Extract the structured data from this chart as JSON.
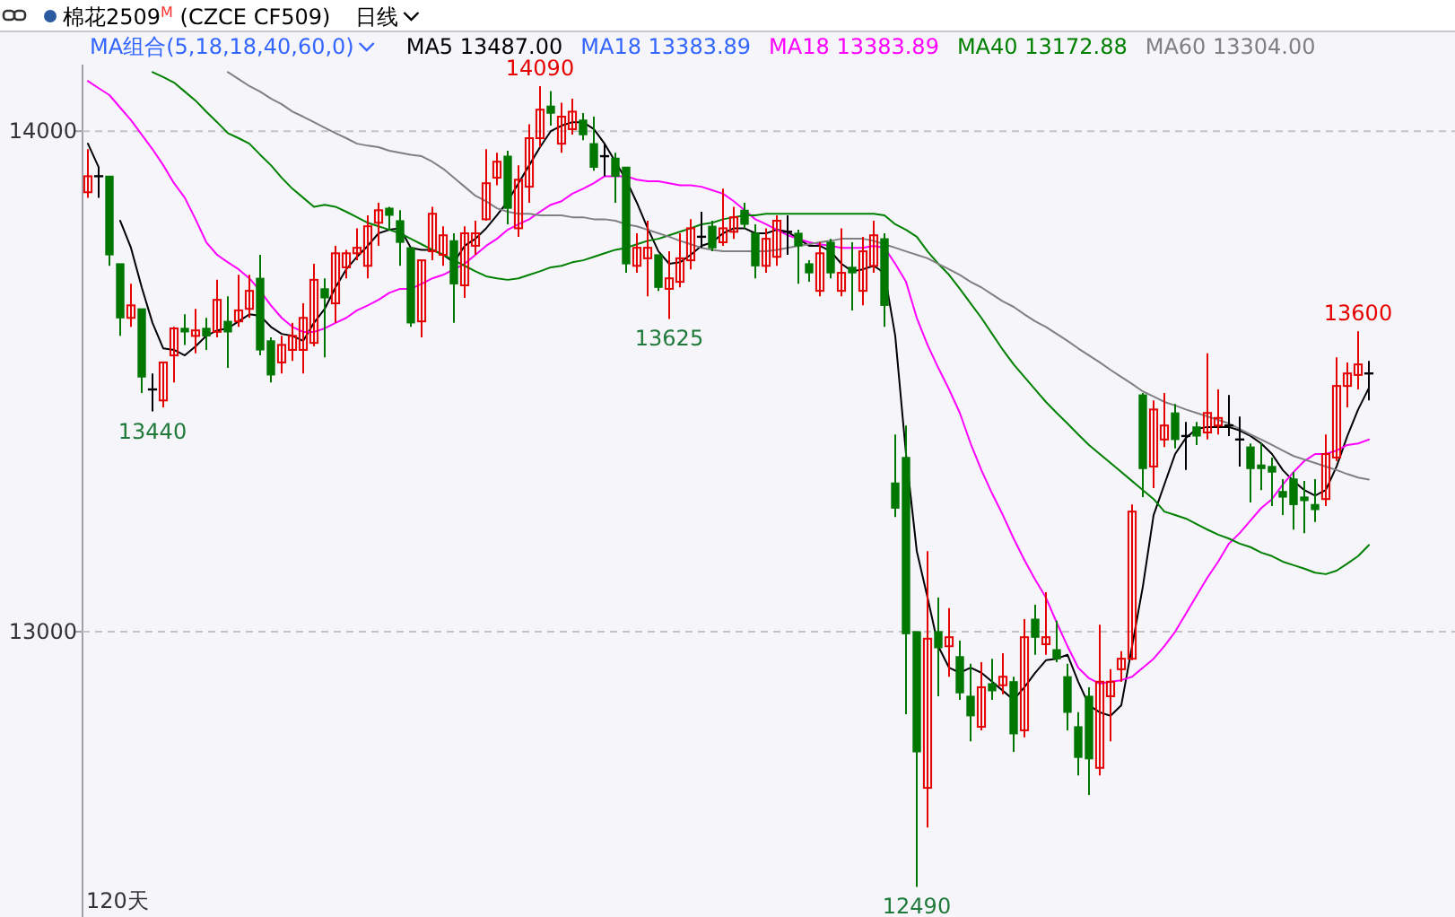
{
  "chart_data": {
    "type": "candlestick",
    "title": "棉花2509$^{M}$ (CZCE CF509)",
    "subtitle": "日线",
    "legend_title": "MA组合(5,18,18,40,60,0)",
    "legend": "top",
    "grid": "y",
    "tick_labels": "y",
    "line_style": "solid",
    "ylim": [
      12430,
      14133
    ],
    "yticks": [
      13000,
      14000
    ],
    "categories": [
      null,
      null,
      null,
      null,
      null,
      null,
      null,
      null,
      null,
      null,
      null,
      null,
      null,
      null,
      null,
      null,
      null,
      null,
      null,
      null,
      null,
      null,
      null,
      null,
      null,
      null,
      null,
      null,
      null,
      null,
      null,
      null,
      null,
      null,
      null,
      null,
      null,
      null,
      null,
      null,
      null,
      null,
      null,
      null,
      null,
      null,
      null,
      null,
      null,
      null,
      null,
      null,
      null,
      null,
      null,
      null,
      null,
      null,
      null,
      null,
      null,
      null,
      null,
      null,
      null,
      null,
      null,
      null,
      null,
      null,
      null,
      null,
      null,
      null,
      null,
      null,
      null,
      null,
      null,
      null,
      null,
      null,
      null,
      null,
      null,
      null,
      null,
      null,
      null,
      null,
      null,
      null,
      null,
      null,
      null,
      null,
      null,
      null,
      null,
      null,
      null,
      null,
      null,
      null,
      null,
      null,
      null,
      null,
      null,
      null,
      null,
      null,
      null,
      null,
      null,
      null,
      null,
      null,
      null,
      null
    ],
    "ohlc": [
      [
        13878,
        13964,
        13867,
        13910
      ],
      [
        13910,
        13928,
        13867,
        13910
      ],
      [
        13910,
        13910,
        13731,
        13753
      ],
      [
        13735,
        13735,
        13591,
        13627
      ],
      [
        13627,
        13695,
        13609,
        13652
      ],
      [
        13645,
        13645,
        13477,
        13509
      ],
      [
        13484,
        13516,
        13440,
        13484
      ],
      [
        13462,
        13538,
        13448,
        13538
      ],
      [
        13552,
        13609,
        13498,
        13606
      ],
      [
        13606,
        13634,
        13573,
        13599
      ],
      [
        13591,
        13645,
        13556,
        13602
      ],
      [
        13606,
        13627,
        13563,
        13591
      ],
      [
        13599,
        13703,
        13588,
        13663
      ],
      [
        13620,
        13670,
        13527,
        13599
      ],
      [
        13620,
        13713,
        13609,
        13642
      ],
      [
        13645,
        13713,
        13627,
        13681
      ],
      [
        13706,
        13753,
        13552,
        13563
      ],
      [
        13581,
        13588,
        13498,
        13513
      ],
      [
        13538,
        13591,
        13516,
        13573
      ],
      [
        13563,
        13617,
        13541,
        13591
      ],
      [
        13563,
        13656,
        13516,
        13627
      ],
      [
        13577,
        13735,
        13570,
        13703
      ],
      [
        13685,
        13706,
        13548,
        13667
      ],
      [
        13656,
        13771,
        13617,
        13756
      ],
      [
        13728,
        13763,
        13706,
        13756
      ],
      [
        13756,
        13806,
        13742,
        13767
      ],
      [
        13731,
        13832,
        13706,
        13810
      ],
      [
        13817,
        13857,
        13771,
        13842
      ],
      [
        13846,
        13849,
        13803,
        13832
      ],
      [
        13821,
        13842,
        13731,
        13778
      ],
      [
        13767,
        13767,
        13609,
        13617
      ],
      [
        13620,
        13742,
        13588,
        13742
      ],
      [
        13760,
        13849,
        13742,
        13835
      ],
      [
        13753,
        13810,
        13731,
        13792
      ],
      [
        13781,
        13796,
        13617,
        13695
      ],
      [
        13692,
        13810,
        13667,
        13796
      ],
      [
        13771,
        13821,
        13753,
        13796
      ],
      [
        13824,
        13964,
        13821,
        13896
      ],
      [
        13907,
        13957,
        13892,
        13939
      ],
      [
        13950,
        13961,
        13814,
        13846
      ],
      [
        13806,
        13932,
        13789,
        13903
      ],
      [
        13889,
        14014,
        13857,
        13986
      ],
      [
        13986,
        14090,
        13968,
        14043
      ],
      [
        14050,
        14080,
        14011,
        14036
      ],
      [
        13975,
        14057,
        13957,
        14029
      ],
      [
        14004,
        14065,
        13993,
        14039
      ],
      [
        14022,
        14036,
        13982,
        13993
      ],
      [
        13975,
        14029,
        13921,
        13928
      ],
      [
        13950,
        13975,
        13910,
        13950
      ],
      [
        13946,
        13957,
        13857,
        13910
      ],
      [
        13928,
        13928,
        13717,
        13735
      ],
      [
        13731,
        13796,
        13717,
        13767
      ],
      [
        13746,
        13821,
        13670,
        13767
      ],
      [
        13753,
        13753,
        13681,
        13688
      ],
      [
        13685,
        13760,
        13625,
        13706
      ],
      [
        13699,
        13796,
        13688,
        13746
      ],
      [
        13742,
        13824,
        13724,
        13806
      ],
      [
        13789,
        13839,
        13767,
        13789
      ],
      [
        13810,
        13821,
        13760,
        13767
      ],
      [
        13778,
        13885,
        13771,
        13806
      ],
      [
        13799,
        13849,
        13785,
        13828
      ],
      [
        13842,
        13857,
        13806,
        13814
      ],
      [
        13796,
        13814,
        13706,
        13731
      ],
      [
        13731,
        13806,
        13717,
        13785
      ],
      [
        13749,
        13832,
        13731,
        13821
      ],
      [
        13799,
        13832,
        13753,
        13799
      ],
      [
        13796,
        13803,
        13695,
        13771
      ],
      [
        13735,
        13742,
        13699,
        13717
      ],
      [
        13681,
        13778,
        13670,
        13756
      ],
      [
        13778,
        13785,
        13706,
        13717
      ],
      [
        13681,
        13806,
        13670,
        13717
      ],
      [
        13728,
        13778,
        13642,
        13717
      ],
      [
        13681,
        13789,
        13652,
        13760
      ],
      [
        13731,
        13821,
        13717,
        13792
      ],
      [
        13785,
        13796,
        13609,
        13652
      ],
      [
        13297,
        13394,
        13229,
        13247
      ],
      [
        13348,
        13412,
        12835,
        12996
      ],
      [
        13000,
        13000,
        12490,
        12760
      ],
      [
        12688,
        13161,
        12609,
        12986
      ],
      [
        13000,
        13068,
        12871,
        12968
      ],
      [
        12971,
        13047,
        12910,
        12989
      ],
      [
        12950,
        12982,
        12864,
        12878
      ],
      [
        12871,
        12936,
        12781,
        12832
      ],
      [
        12810,
        12939,
        12803,
        12889
      ],
      [
        12896,
        12946,
        12864,
        12882
      ],
      [
        12893,
        12957,
        12875,
        12910
      ],
      [
        12900,
        12910,
        12760,
        12796
      ],
      [
        12803,
        13025,
        12789,
        12989
      ],
      [
        13025,
        13054,
        12954,
        12989
      ],
      [
        12975,
        13079,
        12954,
        12989
      ],
      [
        12964,
        13022,
        12939,
        12946
      ],
      [
        12910,
        12936,
        12803,
        12839
      ],
      [
        12810,
        12839,
        12713,
        12749
      ],
      [
        12871,
        12889,
        12674,
        12746
      ],
      [
        12728,
        13014,
        12713,
        12900
      ],
      [
        12871,
        12925,
        12781,
        12900
      ],
      [
        12925,
        12961,
        12900,
        12946
      ],
      [
        12946,
        13254,
        12943,
        13240
      ],
      [
        13473,
        13477,
        13269,
        13326
      ],
      [
        13330,
        13462,
        13287,
        13444
      ],
      [
        13384,
        13477,
        13369,
        13412
      ],
      [
        13437,
        13455,
        13366,
        13384
      ],
      [
        13391,
        13419,
        13323,
        13391
      ],
      [
        13409,
        13419,
        13373,
        13391
      ],
      [
        13398,
        13556,
        13384,
        13437
      ],
      [
        13412,
        13484,
        13394,
        13427
      ],
      [
        13412,
        13473,
        13391,
        13412
      ],
      [
        13384,
        13430,
        13330,
        13384
      ],
      [
        13369,
        13376,
        13258,
        13326
      ],
      [
        13333,
        13376,
        13283,
        13326
      ],
      [
        13330,
        13348,
        13251,
        13319
      ],
      [
        13280,
        13305,
        13233,
        13269
      ],
      [
        13305,
        13319,
        13204,
        13254
      ],
      [
        13269,
        13301,
        13197,
        13262
      ],
      [
        13254,
        13305,
        13219,
        13244
      ],
      [
        13265,
        13394,
        13251,
        13355
      ],
      [
        13348,
        13548,
        13341,
        13491
      ],
      [
        13491,
        13538,
        13448,
        13516
      ],
      [
        13513,
        13600,
        13484,
        13534
      ],
      [
        13516,
        13541,
        13462,
        13516
      ]
    ],
    "colors": [
      "#e60000",
      "#000000",
      "#007800",
      "#007800",
      "#e60000",
      "#007800",
      "#000000",
      "#e60000",
      "#e60000",
      "#007800",
      "#e60000",
      "#007800",
      "#e60000",
      "#007800",
      "#e60000",
      "#e60000",
      "#007800",
      "#007800",
      "#e60000",
      "#e60000",
      "#e60000",
      "#e60000",
      "#007800",
      "#e60000",
      "#e60000",
      "#e60000",
      "#e60000",
      "#e60000",
      "#007800",
      "#007800",
      "#007800",
      "#e60000",
      "#e60000",
      "#e60000",
      "#007800",
      "#e60000",
      "#e60000",
      "#e60000",
      "#e60000",
      "#007800",
      "#e60000",
      "#e60000",
      "#e60000",
      "#007800",
      "#e60000",
      "#e60000",
      "#007800",
      "#007800",
      "#000000",
      "#007800",
      "#007800",
      "#e60000",
      "#e60000",
      "#007800",
      "#e60000",
      "#e60000",
      "#e60000",
      "#000000",
      "#007800",
      "#e60000",
      "#e60000",
      "#007800",
      "#007800",
      "#e60000",
      "#e60000",
      "#000000",
      "#007800",
      "#007800",
      "#e60000",
      "#007800",
      "#e60000",
      "#007800",
      "#e60000",
      "#e60000",
      "#007800",
      "#007800",
      "#007800",
      "#007800",
      "#e60000",
      "#007800",
      "#e60000",
      "#007800",
      "#007800",
      "#e60000",
      "#007800",
      "#e60000",
      "#007800",
      "#e60000",
      "#007800",
      "#e60000",
      "#007800",
      "#007800",
      "#007800",
      "#007800",
      "#e60000",
      "#e60000",
      "#e60000",
      "#e60000",
      "#007800",
      "#e60000",
      "#e60000",
      "#007800",
      "#000000",
      "#007800",
      "#e60000",
      "#e60000",
      "#000000",
      "#000000",
      "#007800",
      "#007800",
      "#007800",
      "#007800",
      "#007800",
      "#007800",
      "#007800",
      "#e60000",
      "#e60000",
      "#e60000",
      "#e60000",
      "#000000"
    ],
    "series": [
      {
        "type": "line",
        "name": "MA5 13487.00",
        "color": "#000000",
        "values": [
          13975,
          13928,
          null,
          13821,
          13767,
          13688,
          13617,
          13566,
          13563,
          13552,
          13570,
          13591,
          13602,
          13606,
          13620,
          13634,
          13631,
          13609,
          13595,
          13591,
          13581,
          13617,
          13645,
          13688,
          13724,
          13749,
          13771,
          13796,
          13803,
          13806,
          13767,
          13763,
          13763,
          13753,
          13738,
          13771,
          13785,
          13806,
          13832,
          13860,
          13896,
          13932,
          13968,
          14000,
          14011,
          14018,
          14018,
          14004,
          13975,
          13939,
          13903,
          13857,
          13806,
          13760,
          13735,
          13738,
          13753,
          13771,
          13778,
          13796,
          13806,
          13806,
          13796,
          13796,
          13803,
          13799,
          13785,
          13771,
          13771,
          13760,
          13735,
          13720,
          13724,
          13731,
          13717,
          13591,
          13355,
          13161,
          13068,
          12971,
          12928,
          12918,
          12928,
          12918,
          12900,
          12882,
          12864,
          12889,
          12918,
          12943,
          12946,
          12954,
          12900,
          12853,
          12839,
          12832,
          12853,
          12971,
          13090,
          13233,
          13294,
          13355,
          13387,
          13405,
          13409,
          13409,
          13409,
          13402,
          13391,
          13376,
          13355,
          13323,
          13301,
          13283,
          13272,
          13283,
          13330,
          13391,
          13444,
          13487
        ]
      },
      {
        "type": "line",
        "name": "MA18 13383.89",
        "color": "#3366ff",
        "values": [
          null,
          null,
          null,
          null,
          null,
          null,
          null,
          null,
          null,
          null,
          null,
          null,
          null,
          null,
          null,
          null,
          null,
          null,
          null,
          null,
          null,
          null,
          null,
          null,
          null,
          null,
          null,
          null,
          null,
          null,
          null,
          null,
          null,
          null,
          null,
          null,
          null,
          null,
          null,
          null,
          null,
          null,
          null,
          null,
          null,
          null,
          null,
          null,
          null,
          null,
          null,
          null,
          null,
          null,
          null,
          null,
          null,
          null,
          null,
          null,
          null,
          null,
          null,
          null,
          null,
          null,
          null,
          null,
          null,
          null,
          null,
          null,
          null,
          null,
          null,
          null,
          null,
          null,
          null,
          null,
          null,
          null,
          null,
          null,
          null,
          null,
          null,
          null,
          null,
          null,
          null,
          null,
          null,
          null,
          null,
          null,
          null,
          null,
          null,
          null,
          null,
          null,
          null,
          null,
          null,
          null,
          null,
          null,
          null,
          null,
          null,
          null,
          null,
          null,
          null,
          null,
          null,
          null,
          null,
          null
        ]
      },
      {
        "type": "line",
        "name": "MA18 13383.89",
        "color": "#ff00ff",
        "values": [
          14100,
          14086,
          14072,
          14047,
          14022,
          13993,
          13964,
          13932,
          13896,
          13867,
          13824,
          13778,
          13753,
          13738,
          13724,
          13706,
          13681,
          13652,
          13627,
          13609,
          13599,
          13599,
          13606,
          13617,
          13627,
          13642,
          13652,
          13663,
          13677,
          13685,
          13685,
          13695,
          13706,
          13713,
          13724,
          13735,
          13753,
          13771,
          13785,
          13803,
          13814,
          13824,
          13839,
          13853,
          13860,
          13875,
          13885,
          13896,
          13910,
          13910,
          13910,
          13903,
          13900,
          13900,
          13896,
          13892,
          13892,
          13889,
          13882,
          13875,
          13860,
          13842,
          13824,
          13814,
          13803,
          13792,
          13785,
          13778,
          13774,
          13771,
          13767,
          13767,
          13767,
          13771,
          13767,
          13735,
          13699,
          13627,
          13573,
          13527,
          13484,
          13437,
          13376,
          13323,
          13276,
          13233,
          13186,
          13143,
          13104,
          13068,
          13018,
          12971,
          12928,
          12907,
          12896,
          12900,
          12903,
          12910,
          12928,
          12946,
          12971,
          13000,
          13036,
          13072,
          13108,
          13140,
          13176,
          13197,
          13222,
          13247,
          13265,
          13294,
          13319,
          13341,
          13355,
          13355,
          13362,
          13373,
          13376,
          13384
        ]
      },
      {
        "type": "line",
        "name": "MA40 13172.88",
        "color": "#008000",
        "values": [
          null,
          null,
          null,
          null,
          null,
          null,
          14118,
          14108,
          14097,
          14079,
          14061,
          14039,
          14018,
          13996,
          13986,
          13975,
          13953,
          13932,
          13907,
          13885,
          13867,
          13849,
          13853,
          13849,
          13839,
          13828,
          13817,
          13810,
          13803,
          13796,
          13785,
          13774,
          13763,
          13753,
          13742,
          13731,
          13720,
          13710,
          13706,
          13703,
          13706,
          13713,
          13720,
          13728,
          13731,
          13738,
          13742,
          13749,
          13756,
          13763,
          13767,
          13774,
          13781,
          13785,
          13792,
          13799,
          13806,
          13814,
          13817,
          13824,
          13828,
          13832,
          13832,
          13835,
          13835,
          13835,
          13835,
          13835,
          13835,
          13835,
          13835,
          13835,
          13835,
          13835,
          13832,
          13814,
          13803,
          13789,
          13760,
          13735,
          13713,
          13685,
          13656,
          13627,
          13595,
          13563,
          13534,
          13509,
          13484,
          13459,
          13437,
          13416,
          13394,
          13373,
          13355,
          13337,
          13319,
          13301,
          13283,
          13265,
          13240,
          13233,
          13226,
          13215,
          13204,
          13194,
          13186,
          13176,
          13169,
          13158,
          13151,
          13140,
          13133,
          13126,
          13118,
          13115,
          13122,
          13136,
          13151,
          13173
        ]
      },
      {
        "type": "line",
        "name": "MA60 13304.00",
        "color": "#808080",
        "values": [
          null,
          null,
          null,
          null,
          null,
          null,
          null,
          null,
          null,
          null,
          null,
          null,
          null,
          14118,
          14104,
          14090,
          14079,
          14065,
          14054,
          14039,
          14029,
          14018,
          14007,
          13996,
          13986,
          13975,
          13971,
          13968,
          13961,
          13957,
          13953,
          13950,
          13939,
          13925,
          13907,
          13889,
          13871,
          13860,
          13846,
          13839,
          13835,
          13835,
          13832,
          13832,
          13832,
          13828,
          13828,
          13824,
          13824,
          13821,
          13814,
          13810,
          13803,
          13796,
          13789,
          13781,
          13774,
          13767,
          13763,
          13760,
          13760,
          13760,
          13760,
          13760,
          13763,
          13767,
          13771,
          13774,
          13778,
          13781,
          13785,
          13785,
          13785,
          13781,
          13774,
          13767,
          13760,
          13753,
          13746,
          13735,
          13724,
          13713,
          13699,
          13688,
          13674,
          13660,
          13649,
          13634,
          13620,
          13609,
          13595,
          13581,
          13566,
          13552,
          13538,
          13523,
          13509,
          13495,
          13480,
          13470,
          13459,
          13452,
          13444,
          13437,
          13430,
          13423,
          13416,
          13405,
          13394,
          13384,
          13373,
          13362,
          13351,
          13344,
          13337,
          13330,
          13323,
          13315,
          13308,
          13304
        ]
      }
    ],
    "annotations": [
      "120天",
      {
        "text": "14090",
        "y": 14090
      },
      {
        "text": "13440",
        "y": 13440
      },
      {
        "text": "13625",
        "y": 13625
      },
      {
        "text": "12490",
        "y": 12490
      },
      {
        "text": "13600",
        "y": 13600
      }
    ]
  }
}
